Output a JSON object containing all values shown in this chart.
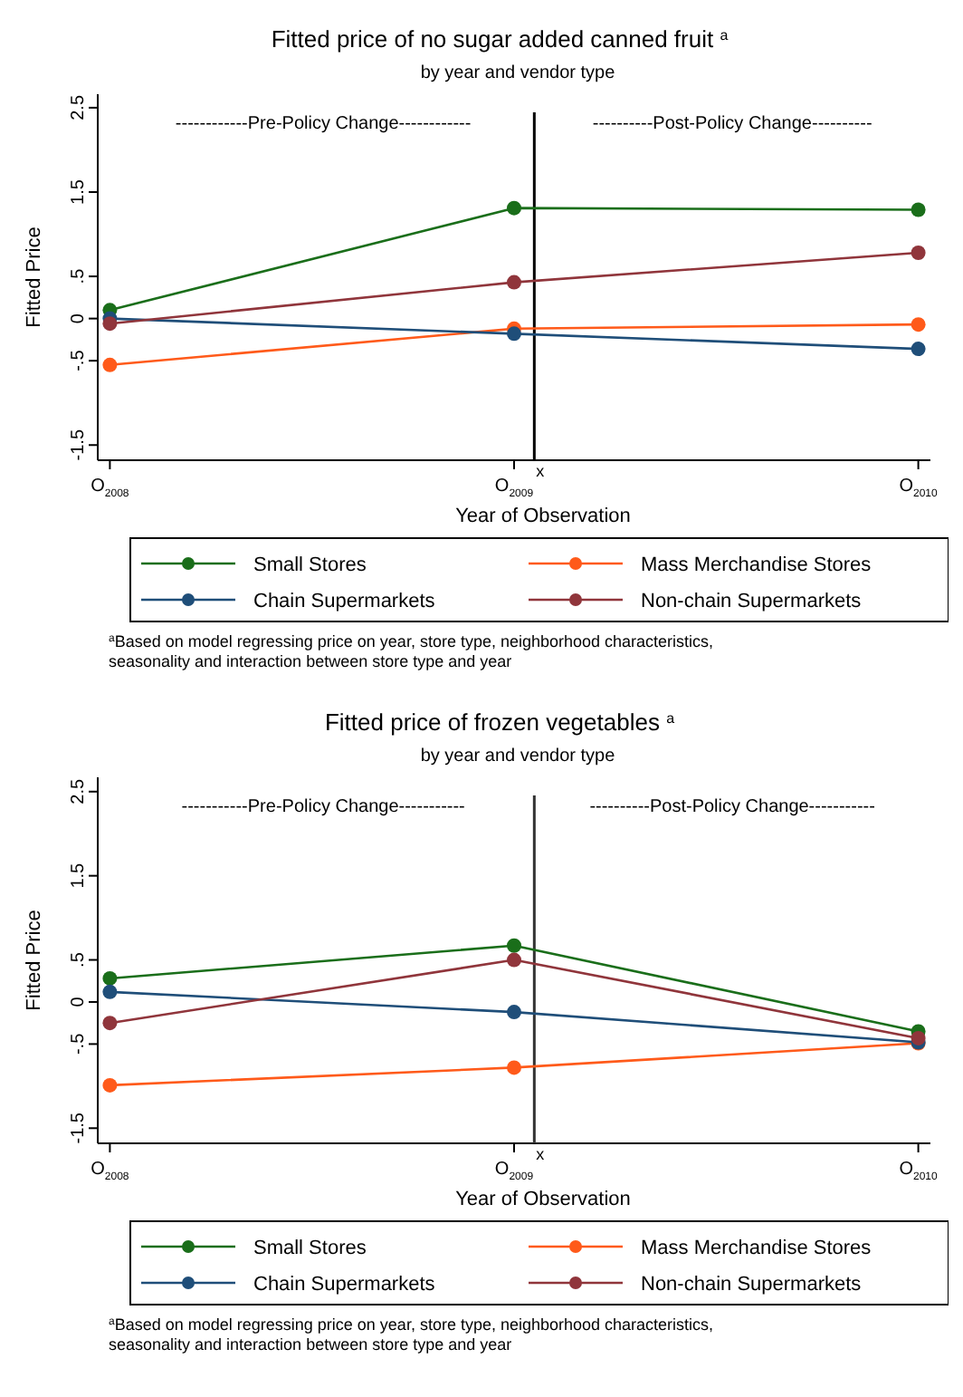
{
  "chart_data": [
    {
      "type": "line",
      "title": "Fitted price of no sugar added canned fruit $^{a}$",
      "subtitle": "by year and vendor type",
      "xlabel": "Year of Observation",
      "ylabel": "Fitted Price",
      "x": [
        2008,
        2009,
        2010
      ],
      "xlim": [
        2007.97,
        2010.03
      ],
      "xticks": [
        {
          "value": 2008,
          "label": "O$_{2008}$"
        },
        {
          "value": 2009,
          "label": "O$_{2009}$"
        },
        {
          "value": 2010,
          "label": "O$_{2010}$"
        }
      ],
      "ylim": [
        -1.68,
        2.66
      ],
      "yticks": [
        {
          "value": -1.5,
          "label": "-1.5"
        },
        {
          "value": -0.5,
          "label": "-.5"
        },
        0,
        {
          "value": 0.5,
          "label": ".5"
        },
        1.5,
        2.5
      ],
      "marker": "circle",
      "legend": "bottom",
      "grid": false,
      "series": [
        {
          "name": "Small Stores",
          "color": "#1a6e1a",
          "values": [
            0.1,
            1.31,
            1.29
          ]
        },
        {
          "name": "Mass Merchandise Stores",
          "color": "#ff5a1a",
          "values": [
            -0.55,
            -0.12,
            -0.07
          ]
        },
        {
          "name": "Chain Supermarkets",
          "color": "#1f4e79",
          "values": [
            0,
            -0.18,
            -0.36
          ]
        },
        {
          "name": "Non-chain Supermarkets",
          "color": "#90353b",
          "values": [
            -0.06,
            0.43,
            0.78
          ]
        }
      ],
      "ref_lines": [
        {
          "axis": "x",
          "value": 2009.05,
          "label": "x",
          "color": "#000000"
        }
      ],
      "annotations": [
        "------------Pre-Policy Change------------",
        "----------Post-Policy Change----------",
        "$^{a}$Based on model regressing price on year, store type, neighborhood characteristics,",
        "seasonality and interaction between store type and year"
      ]
    },
    {
      "type": "line",
      "title": "Fitted price of frozen vegetables $^{a}$",
      "subtitle": "by year and vendor type",
      "xlabel": "Year of Observation",
      "ylabel": "Fitted Price",
      "x": [
        2008,
        2009,
        2010
      ],
      "xlim": [
        2007.97,
        2010.03
      ],
      "xticks": [
        {
          "value": 2008,
          "label": "O$_{2008}$"
        },
        {
          "value": 2009,
          "label": "O$_{2009}$"
        },
        {
          "value": 2010,
          "label": "O$_{2010}$"
        }
      ],
      "ylim": [
        -1.68,
        2.67
      ],
      "yticks": [
        {
          "value": -1.5,
          "label": "-1.5"
        },
        {
          "value": -0.5,
          "label": "-.5"
        },
        0,
        {
          "value": 0.5,
          "label": ".5"
        },
        1.5,
        2.5
      ],
      "marker": "circle",
      "legend": "bottom",
      "grid": false,
      "series": [
        {
          "name": "Small Stores",
          "color": "#1a6e1a",
          "values": [
            0.28,
            0.67,
            -0.35
          ]
        },
        {
          "name": "Mass Merchandise Stores",
          "color": "#ff5a1a",
          "values": [
            -0.99,
            -0.78,
            -0.49
          ]
        },
        {
          "name": "Chain Supermarkets",
          "color": "#1f4e79",
          "values": [
            0.12,
            -0.12,
            -0.48
          ]
        },
        {
          "name": "Non-chain Supermarkets",
          "color": "#90353b",
          "values": [
            -0.25,
            0.5,
            -0.43
          ]
        }
      ],
      "ref_lines": [
        {
          "axis": "x",
          "value": 2009.05,
          "label": "x",
          "color": "#333333"
        }
      ],
      "annotations": [
        "-----------Pre-Policy Change-----------",
        "----------Post-Policy Change-----------",
        "$^{a}$Based on model regressing price on year, store type, neighborhood characteristics,",
        "seasonality and interaction between store type and year"
      ]
    }
  ]
}
